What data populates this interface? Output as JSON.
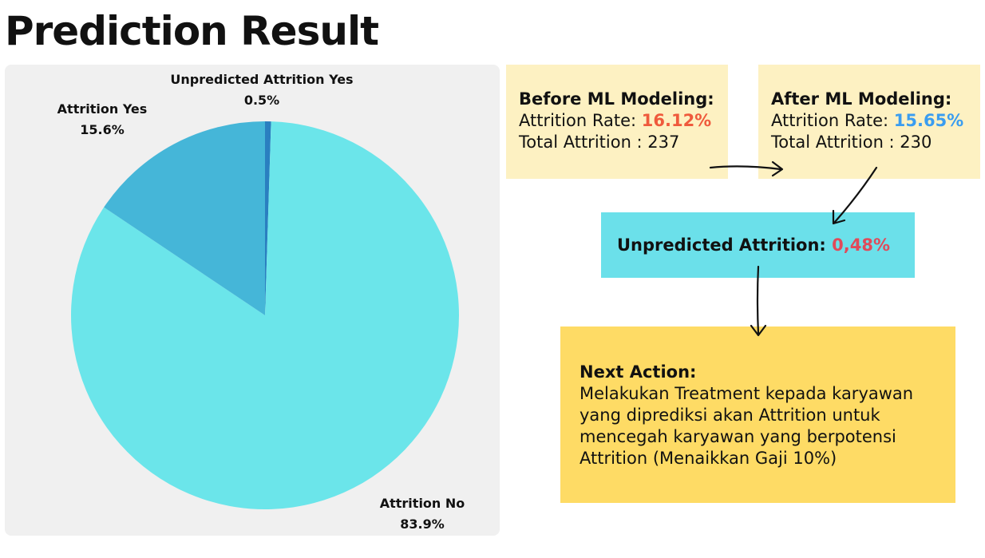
{
  "page": {
    "title": "Prediction Result"
  },
  "chart_data": {
    "type": "pie",
    "slices": [
      {
        "label": "Unpredicted Attrition Yes",
        "value": 0.5,
        "display": "0.5%",
        "color": "#2a7fc0"
      },
      {
        "label": "Attrition No",
        "value": 83.9,
        "display": "83.9%",
        "color": "#6be5ea"
      },
      {
        "label": "Attrition Yes",
        "value": 15.6,
        "display": "15.6%",
        "color": "#45b6d8"
      }
    ],
    "start_angle_deg": 0,
    "direction": "clockwise",
    "legend": "none"
  },
  "cards": {
    "before": {
      "heading": "Before ML Modeling:",
      "rate_label": "Attrition Rate: ",
      "rate_value": "16.12%",
      "total_text": "Total Attrition : 237"
    },
    "after": {
      "heading": "After ML Modeling:",
      "rate_label": "Attrition Rate: ",
      "rate_value": "15.65%",
      "total_text": "Total Attrition : 230"
    },
    "unpredicted": {
      "label": "Unpredicted Attrition: ",
      "value": "0,48%"
    },
    "next_action": {
      "heading": "Next Action:",
      "lines": [
        "Melakukan Treatment kepada karyawan",
        "yang diprediksi akan Attrition untuk",
        "mencegah karyawan yang berpotensi",
        "Attrition (Menaikkan Gaji 10%)"
      ]
    }
  }
}
